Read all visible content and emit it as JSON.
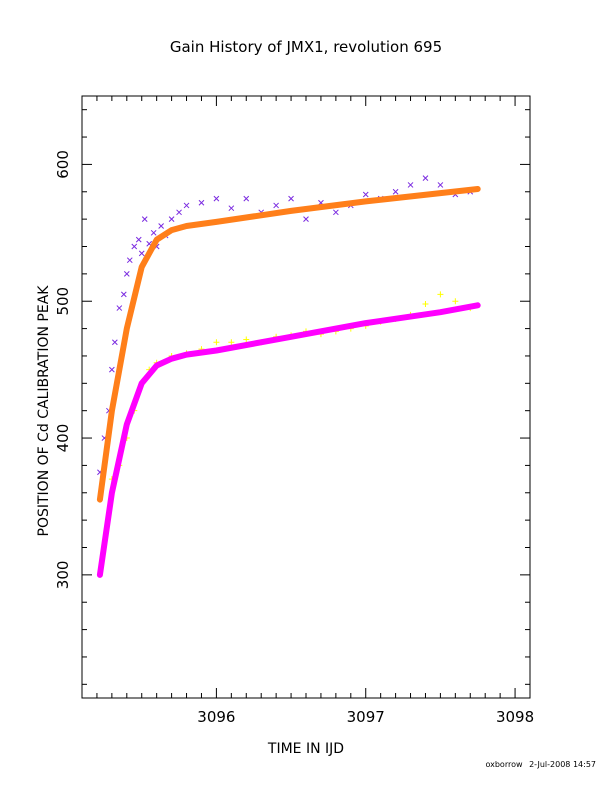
{
  "chart_data": {
    "type": "scatter",
    "title": "Gain History of JMX1, revolution 695",
    "xlabel": "TIME IN IJD",
    "ylabel": "POSITION OF Cd CALIBRATION PEAK",
    "xlim": [
      3095.1,
      3098.1
    ],
    "ylim": [
      210,
      650
    ],
    "xticks": [
      3096,
      3097,
      3098
    ],
    "yticks": [
      300,
      400,
      500,
      600
    ],
    "grid": false,
    "legend": "none",
    "series": [
      {
        "kind": "scatter-x",
        "color": "#7a2ae0",
        "points": [
          [
            3095.22,
            375
          ],
          [
            3095.25,
            400
          ],
          [
            3095.28,
            420
          ],
          [
            3095.3,
            450
          ],
          [
            3095.32,
            470
          ],
          [
            3095.35,
            495
          ],
          [
            3095.38,
            505
          ],
          [
            3095.4,
            520
          ],
          [
            3095.42,
            530
          ],
          [
            3095.45,
            540
          ],
          [
            3095.48,
            545
          ],
          [
            3095.5,
            535
          ],
          [
            3095.52,
            560
          ],
          [
            3095.55,
            542
          ],
          [
            3095.58,
            550
          ],
          [
            3095.6,
            540
          ],
          [
            3095.63,
            555
          ],
          [
            3095.66,
            548
          ],
          [
            3095.7,
            560
          ],
          [
            3095.75,
            565
          ],
          [
            3095.8,
            570
          ],
          [
            3095.9,
            572
          ],
          [
            3096.0,
            575
          ],
          [
            3096.1,
            568
          ],
          [
            3096.2,
            575
          ],
          [
            3096.3,
            565
          ],
          [
            3096.4,
            570
          ],
          [
            3096.5,
            575
          ],
          [
            3096.6,
            560
          ],
          [
            3096.7,
            572
          ],
          [
            3096.8,
            565
          ],
          [
            3096.9,
            570
          ],
          [
            3097.0,
            578
          ],
          [
            3097.1,
            575
          ],
          [
            3097.2,
            580
          ],
          [
            3097.3,
            585
          ],
          [
            3097.4,
            590
          ],
          [
            3097.5,
            585
          ],
          [
            3097.6,
            578
          ],
          [
            3097.7,
            580
          ]
        ]
      },
      {
        "kind": "fit-line",
        "color": "#ff7f1a",
        "points": [
          [
            3095.22,
            355
          ],
          [
            3095.3,
            420
          ],
          [
            3095.4,
            480
          ],
          [
            3095.5,
            525
          ],
          [
            3095.6,
            545
          ],
          [
            3095.7,
            552
          ],
          [
            3095.8,
            555
          ],
          [
            3096.0,
            558
          ],
          [
            3096.5,
            566
          ],
          [
            3097.0,
            573
          ],
          [
            3097.5,
            579
          ],
          [
            3097.75,
            582
          ]
        ]
      },
      {
        "kind": "scatter-plus",
        "color": "#ffff00",
        "points": [
          [
            3095.3,
            370
          ],
          [
            3095.35,
            380
          ],
          [
            3095.4,
            400
          ],
          [
            3095.45,
            420
          ],
          [
            3095.5,
            440
          ],
          [
            3095.55,
            450
          ],
          [
            3095.6,
            455
          ],
          [
            3095.7,
            460
          ],
          [
            3095.8,
            462
          ],
          [
            3095.9,
            465
          ],
          [
            3096.0,
            470
          ],
          [
            3096.1,
            470
          ],
          [
            3096.2,
            472
          ],
          [
            3096.3,
            470
          ],
          [
            3096.4,
            474
          ],
          [
            3096.5,
            475
          ],
          [
            3096.6,
            478
          ],
          [
            3096.7,
            476
          ],
          [
            3096.8,
            478
          ],
          [
            3096.9,
            480
          ],
          [
            3097.0,
            482
          ],
          [
            3097.1,
            485
          ],
          [
            3097.2,
            487
          ],
          [
            3097.3,
            490
          ],
          [
            3097.4,
            498
          ],
          [
            3097.5,
            505
          ],
          [
            3097.6,
            500
          ],
          [
            3097.7,
            495
          ]
        ]
      },
      {
        "kind": "fit-line",
        "color": "#ff00ff",
        "points": [
          [
            3095.22,
            300
          ],
          [
            3095.3,
            360
          ],
          [
            3095.4,
            410
          ],
          [
            3095.5,
            440
          ],
          [
            3095.6,
            453
          ],
          [
            3095.7,
            458
          ],
          [
            3095.8,
            461
          ],
          [
            3096.0,
            464
          ],
          [
            3096.5,
            474
          ],
          [
            3097.0,
            484
          ],
          [
            3097.5,
            492
          ],
          [
            3097.75,
            497
          ]
        ]
      }
    ]
  },
  "footer": {
    "user": "oxborrow",
    "timestamp": "2-Jul-2008 14:57"
  }
}
